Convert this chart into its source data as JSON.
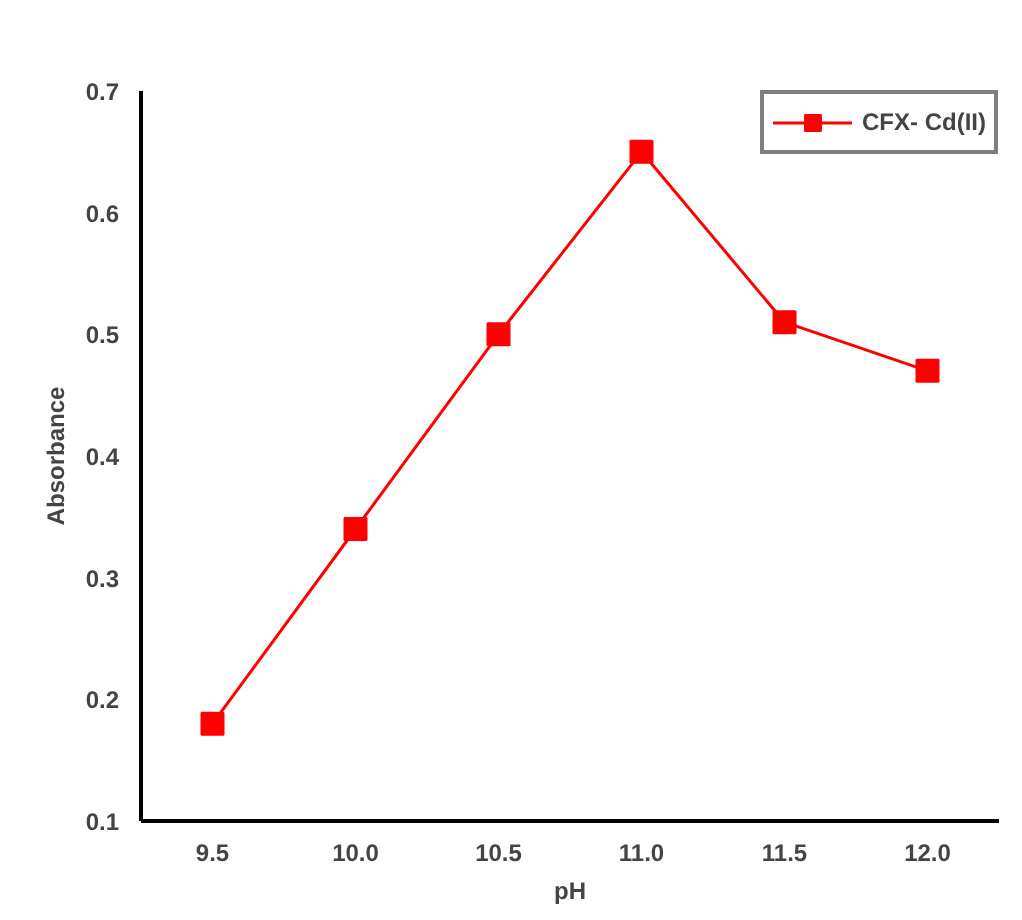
{
  "chart_data": {
    "type": "line",
    "xlabel": "pH",
    "ylabel": "Absorbance",
    "categories": [
      "9.5",
      "10.0",
      "10.5",
      "11.0",
      "11.5",
      "12.0"
    ],
    "series": [
      {
        "name": "CFX- Cd(II)",
        "color": "#ff0000",
        "values": [
          0.18,
          0.34,
          0.5,
          0.65,
          0.51,
          0.47
        ]
      }
    ],
    "ylim": [
      0.1,
      0.7
    ],
    "yticks": [
      0.1,
      0.2,
      0.3,
      0.4,
      0.5,
      0.6,
      0.7
    ],
    "grid": false,
    "legend": "top right",
    "marker": "square",
    "line_style": "solid"
  }
}
